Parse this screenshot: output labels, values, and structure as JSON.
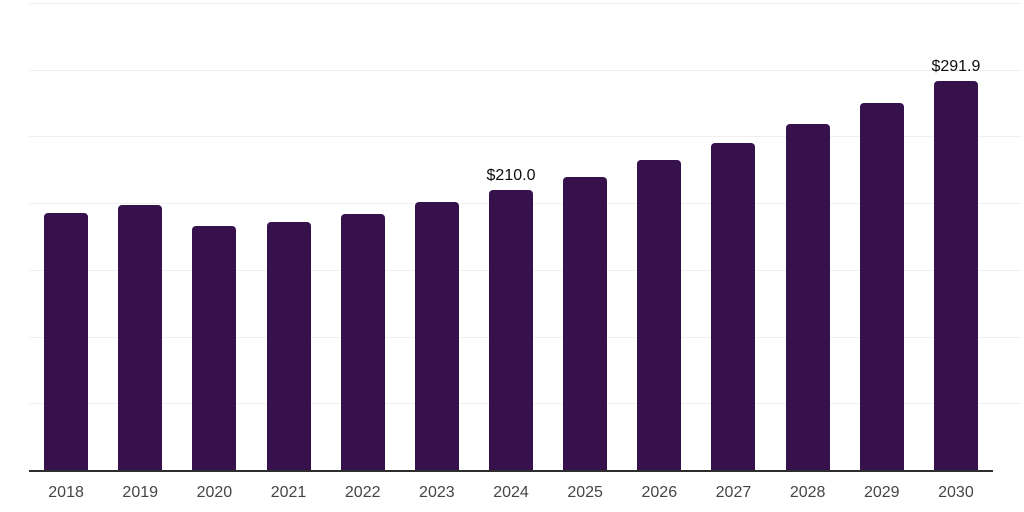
{
  "chart": {
    "background_color": "#ffffff",
    "bar_color": "#36114c",
    "grid_color": "#f0f0f0",
    "axis_color": "#2d2d2d",
    "tick_label_color": "#454545",
    "value_label_color": "#0d0d0d"
  },
  "chart_data": {
    "type": "bar",
    "title": "",
    "xlabel": "",
    "ylabel": "",
    "categories": [
      "2018",
      "2019",
      "2020",
      "2021",
      "2022",
      "2023",
      "2024",
      "2025",
      "2026",
      "2027",
      "2028",
      "2029",
      "2030"
    ],
    "values": [
      192.8,
      198.4,
      183.0,
      185.5,
      192.2,
      200.5,
      210.0,
      219.4,
      232.1,
      244.8,
      259.1,
      275.0,
      291.9
    ],
    "value_labels": {
      "2024": "$210.0",
      "2030": "$291.9"
    },
    "ylim": [
      0,
      350
    ],
    "grid_step": 50,
    "grid": "horizontal",
    "legend_position": "none",
    "y_axis_tick_labels_visible": false
  }
}
